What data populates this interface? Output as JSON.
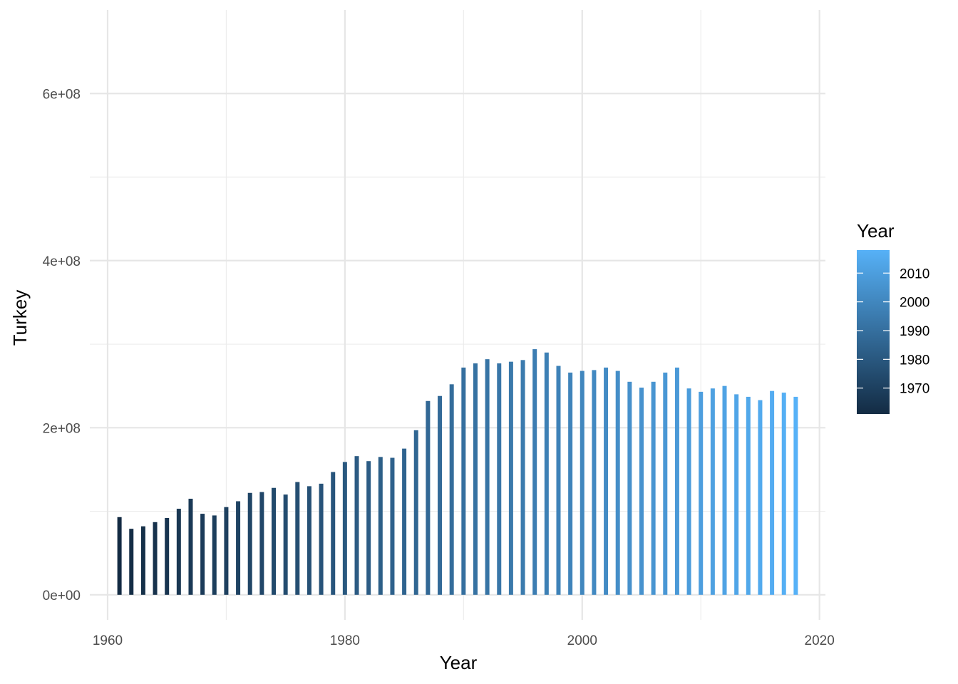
{
  "chart_data": {
    "type": "bar",
    "xlabel": "Year",
    "ylabel": "Turkey",
    "x_ticks": [
      "1960",
      "1980",
      "2000",
      "2020"
    ],
    "y_ticks": [
      "0e+00",
      "2e+08",
      "4e+08",
      "6e+08"
    ],
    "xlim": [
      1958.5,
      2020.5
    ],
    "ylim": [
      -30000000,
      700000000
    ],
    "grid": true,
    "legend": {
      "title": "Year",
      "position": "right",
      "type": "colorbar",
      "labels": [
        "2010",
        "2000",
        "1990",
        "1980",
        "1970"
      ],
      "range": [
        1961,
        2018
      ],
      "color_low": "#132B43",
      "color_high": "#56B1F7"
    },
    "x": [
      1961,
      1962,
      1963,
      1964,
      1965,
      1966,
      1967,
      1968,
      1969,
      1970,
      1971,
      1972,
      1973,
      1974,
      1975,
      1976,
      1977,
      1978,
      1979,
      1980,
      1981,
      1982,
      1983,
      1984,
      1985,
      1986,
      1987,
      1988,
      1989,
      1990,
      1991,
      1992,
      1993,
      1994,
      1995,
      1996,
      1997,
      1998,
      1999,
      2000,
      2001,
      2002,
      2003,
      2004,
      2005,
      2006,
      2007,
      2008,
      2009,
      2010,
      2011,
      2012,
      2013,
      2014,
      2015,
      2016,
      2017,
      2018
    ],
    "values": [
      93000000,
      79000000,
      82000000,
      87000000,
      92000000,
      103000000,
      115000000,
      97000000,
      95000000,
      105000000,
      112000000,
      122000000,
      123000000,
      128000000,
      120000000,
      135000000,
      130000000,
      133000000,
      147000000,
      159000000,
      166000000,
      160000000,
      165000000,
      164000000,
      175000000,
      197000000,
      232000000,
      238000000,
      252000000,
      272000000,
      277000000,
      282000000,
      277000000,
      279000000,
      281000000,
      294000000,
      290000000,
      274000000,
      266000000,
      268000000,
      269000000,
      272000000,
      268000000,
      255000000,
      248000000,
      255000000,
      266000000,
      272000000,
      247000000,
      243000000,
      247000000,
      250000000,
      240000000,
      237000000,
      233000000,
      244000000,
      242000000,
      237000000
    ]
  }
}
